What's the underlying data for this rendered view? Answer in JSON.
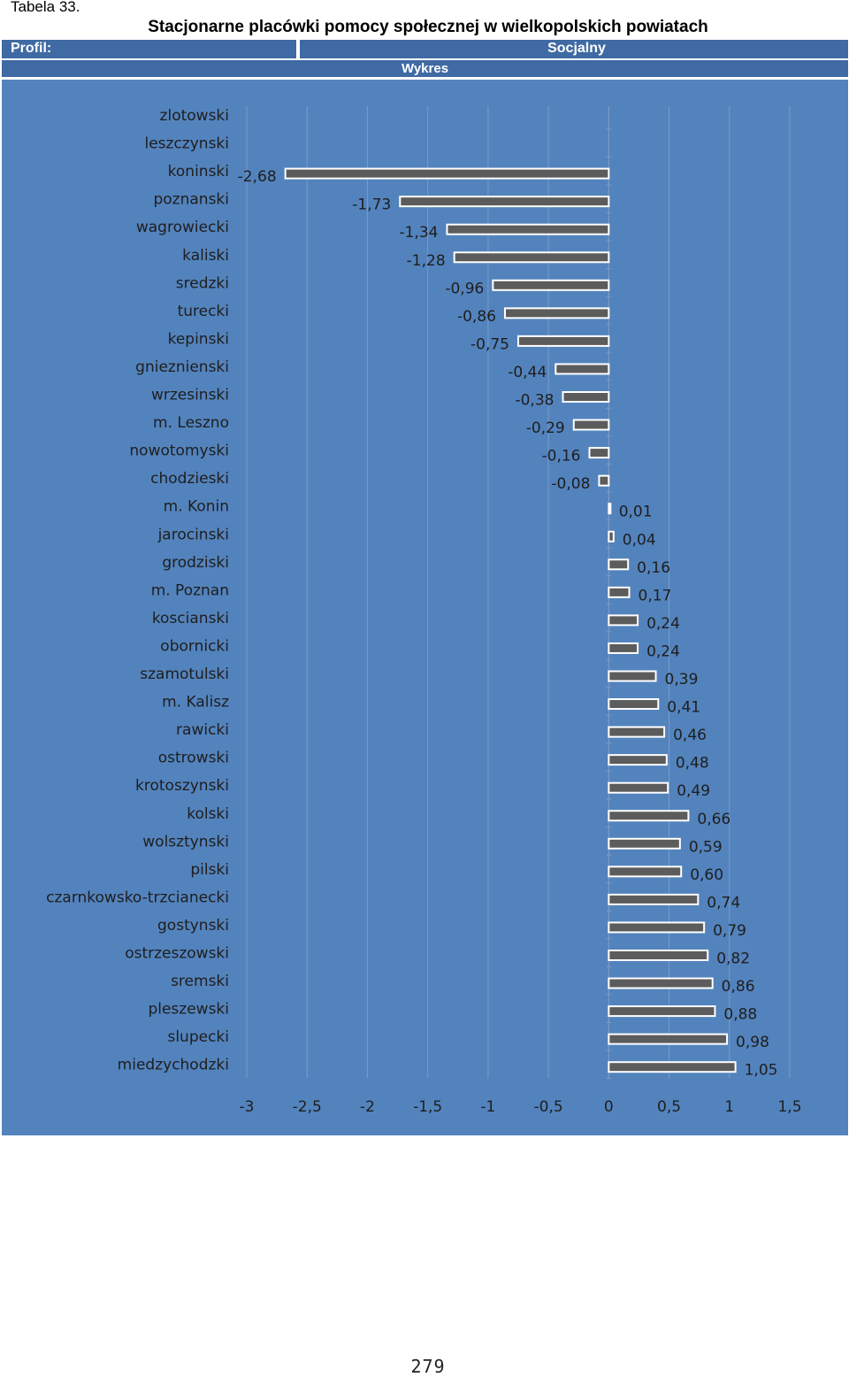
{
  "header": {
    "table_label": "Tabela 33.",
    "title": "Stacjonarne placówki pomocy społecznej w wielkopolskich powiatach",
    "profile_label": "Profil:",
    "profile_value": "Socjalny",
    "section_label": "Wykres"
  },
  "colors": {
    "chart_background": "#5383bd",
    "header_bar": "#3f6aa3",
    "bar_fill": "#5c5c5c",
    "bar_outline": "#ffffff",
    "grid": "#7a9bc7",
    "label_text": "#1e1e1e"
  },
  "chart_data": {
    "type": "bar",
    "orientation": "horizontal",
    "title": "",
    "xlabel": "",
    "ylabel": "",
    "xlim": [
      -3,
      1.5
    ],
    "x_ticks": [
      "-3",
      "-2,5",
      "-2",
      "-1,5",
      "-1",
      "-0,5",
      "0",
      "0,5",
      "1",
      "1,5"
    ],
    "x_tick_values": [
      -3,
      -2.5,
      -2,
      -1.5,
      -1,
      -0.5,
      0,
      0.5,
      1,
      1.5
    ],
    "grid": true,
    "legend": "none",
    "categories": [
      "zlotowski",
      "leszczynski",
      "koninski",
      "poznanski",
      "wagrowiecki",
      "kaliski",
      "sredzki",
      "turecki",
      "kepinski",
      "gnieznienski",
      "wrzesinski",
      "m. Leszno",
      "nowotomyski",
      "chodzieski",
      "m. Konin",
      "jarocinski",
      "grodziski",
      "m. Poznan",
      "koscianski",
      "obornicki",
      "szamotulski",
      "m. Kalisz",
      "rawicki",
      "ostrowski",
      "krotoszynski",
      "kolski",
      "wolsztynski",
      "pilski",
      "czarnkowsko-trzcianecki",
      "gostynski",
      "ostrzeszowski",
      "sremski",
      "pleszewski",
      "slupecki",
      "miedzychodzki"
    ],
    "values": [
      null,
      null,
      -2.68,
      -1.73,
      -1.34,
      -1.28,
      -0.96,
      -0.86,
      -0.75,
      -0.44,
      -0.38,
      -0.29,
      -0.16,
      -0.08,
      0.01,
      0.04,
      0.16,
      0.17,
      0.24,
      0.24,
      0.39,
      0.41,
      0.46,
      0.48,
      0.49,
      0.66,
      0.59,
      0.6,
      0.74,
      0.79,
      0.82,
      0.86,
      0.88,
      0.98,
      1.05
    ],
    "value_labels": [
      "",
      "",
      "-2,68",
      "-1,73",
      "-1,34",
      "-1,28",
      "-0,96",
      "-0,86",
      "-0,75",
      "-0,44",
      "-0,38",
      "-0,29",
      "-0,16",
      "-0,08",
      "0,01",
      "0,04",
      "0,16",
      "0,17",
      "0,24",
      "0,24",
      "0,39",
      "0,41",
      "0,46",
      "0,48",
      "0,49",
      "0,66",
      "0,59",
      "0,60",
      "0,74",
      "0,79",
      "0,82",
      "0,86",
      "0,88",
      "0,98",
      "1,05"
    ]
  },
  "footer": {
    "page_number": "279"
  }
}
